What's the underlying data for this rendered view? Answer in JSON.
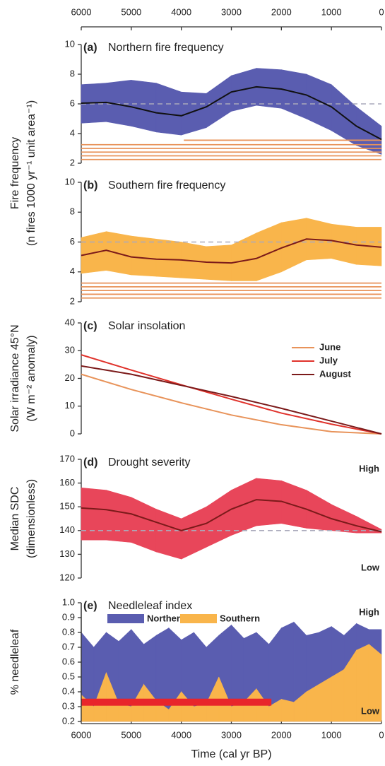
{
  "chart_data": [
    {
      "type": "band",
      "label": "(a)",
      "title": "Northern fire frequency",
      "ylabel": [
        "Fire frequency",
        "(n fires 1000 yr⁻¹ unit area⁻¹)"
      ],
      "xlim": [
        6000,
        0
      ],
      "xticks": [
        6000,
        5000,
        4000,
        3000,
        2000,
        1000,
        0
      ],
      "ylim": [
        2,
        10
      ],
      "yticks": [
        2,
        4,
        6,
        8,
        10
      ],
      "x": [
        6000,
        5500,
        5000,
        4500,
        4000,
        3500,
        3000,
        2500,
        2000,
        1500,
        1000,
        500,
        0
      ],
      "mean": [
        6.05,
        6.1,
        5.8,
        5.4,
        5.2,
        5.8,
        6.8,
        7.15,
        7.0,
        6.6,
        5.8,
        4.5,
        3.6
      ],
      "upper": [
        7.3,
        7.4,
        7.6,
        7.4,
        6.8,
        6.7,
        7.9,
        8.4,
        8.3,
        8.0,
        7.3,
        5.8,
        4.5
      ],
      "lower": [
        4.7,
        4.8,
        4.5,
        4.1,
        3.9,
        4.4,
        5.5,
        5.9,
        5.7,
        5.0,
        4.2,
        3.2,
        2.6
      ],
      "band_color": "#5a5db0",
      "line_color": "#111111",
      "ref_line": 6,
      "hline_color": "#e8935a",
      "hlines": [
        {
          "start": 3950,
          "end": 0,
          "y": 3.55
        },
        {
          "start": 6000,
          "end": 0,
          "y": 3.25
        },
        {
          "start": 6000,
          "end": 0,
          "y": 3.0
        },
        {
          "start": 6000,
          "end": 0,
          "y": 2.75
        },
        {
          "start": 6000,
          "end": 0,
          "y": 2.5
        },
        {
          "start": 6000,
          "end": 0,
          "y": 2.25
        }
      ]
    },
    {
      "type": "band",
      "label": "(b)",
      "title": "Southern fire frequency",
      "xlim": [
        6000,
        0
      ],
      "ylim": [
        2,
        10
      ],
      "yticks": [
        2,
        4,
        6,
        8,
        10
      ],
      "x": [
        6000,
        5500,
        5000,
        4500,
        4000,
        3500,
        3000,
        2500,
        2000,
        1500,
        1000,
        500,
        0
      ],
      "mean": [
        5.1,
        5.45,
        5.0,
        4.85,
        4.8,
        4.65,
        4.6,
        4.9,
        5.6,
        6.2,
        6.1,
        5.8,
        5.65
      ],
      "upper": [
        6.3,
        6.7,
        6.4,
        6.2,
        6.0,
        5.7,
        5.8,
        6.6,
        7.3,
        7.6,
        7.2,
        7.0,
        7.0
      ],
      "lower": [
        3.9,
        4.1,
        3.8,
        3.7,
        3.6,
        3.5,
        3.4,
        3.4,
        4.0,
        4.8,
        4.9,
        4.5,
        4.4
      ],
      "band_color": "#f9b54b",
      "line_color": "#7b1a1a",
      "ref_line": 6,
      "hline_color": "#e8935a",
      "hlines": [
        {
          "start": 6000,
          "end": 0,
          "y": 3.25
        },
        {
          "start": 6000,
          "end": 0,
          "y": 3.0
        },
        {
          "start": 6000,
          "end": 0,
          "y": 2.75
        },
        {
          "start": 6000,
          "end": 0,
          "y": 2.5
        },
        {
          "start": 6000,
          "end": 0,
          "y": 2.25
        }
      ]
    },
    {
      "type": "line",
      "label": "(c)",
      "title": "Solar insolation",
      "ylabel": [
        "Solar irradiance 45°N",
        "(W m⁻² anomaly)"
      ],
      "xlim": [
        6000,
        0
      ],
      "ylim": [
        0,
        40
      ],
      "yticks": [
        0,
        10,
        20,
        30,
        40
      ],
      "legend": "upper right",
      "x": [
        6000,
        5000,
        4000,
        3000,
        2000,
        1000,
        0
      ],
      "series": [
        {
          "name": "June",
          "color": "#e8935a",
          "values": [
            21.5,
            16,
            11.2,
            6.8,
            3.3,
            0.8,
            0
          ]
        },
        {
          "name": "July",
          "color": "#e0322b",
          "values": [
            28.5,
            23,
            17.7,
            12.5,
            7.5,
            3.5,
            0
          ]
        },
        {
          "name": "August",
          "color": "#7b1a1a",
          "values": [
            24.5,
            21.5,
            17.5,
            13.5,
            9.2,
            4.6,
            0
          ]
        }
      ]
    },
    {
      "type": "band",
      "label": "(d)",
      "title": "Drought severity",
      "ylabel": [
        "Median SDC",
        "(dimensionless)"
      ],
      "xlim": [
        6000,
        0
      ],
      "ylim": [
        120,
        170
      ],
      "yticks": [
        120,
        130,
        140,
        150,
        160,
        170
      ],
      "x": [
        6000,
        5500,
        5000,
        4500,
        4000,
        3500,
        3000,
        2500,
        2000,
        1500,
        1000,
        500,
        0
      ],
      "mean": [
        149.5,
        148.8,
        147,
        143.5,
        140,
        143,
        149,
        153,
        152.3,
        149,
        145,
        142,
        139.5
      ],
      "upper": [
        158,
        157,
        154,
        149,
        145,
        150,
        157,
        162,
        161,
        157,
        151,
        146,
        140.5
      ],
      "lower": [
        136,
        136,
        135,
        131,
        128,
        133,
        138,
        142,
        143,
        141,
        140,
        139,
        139
      ],
      "band_color": "#e8465a",
      "line_color": "#7b1a1a",
      "ref_line": 140,
      "annotations": [
        "High",
        "Low"
      ]
    },
    {
      "type": "area",
      "label": "(e)",
      "title": "Needleleaf index",
      "ylabel": [
        "% needleleaf"
      ],
      "xlabel": "Time (cal yr BP)",
      "xlim": [
        6000,
        0
      ],
      "xticks": [
        6000,
        5000,
        4000,
        3000,
        2000,
        1000,
        0
      ],
      "ylim": [
        0.2,
        1
      ],
      "yticks": [
        0.2,
        0.3,
        0.4,
        0.5,
        0.6,
        0.7,
        0.8,
        0.9,
        {
          "value": 1,
          "label": "1.0"
        }
      ],
      "legend": "upper left",
      "x": [
        6000,
        5750,
        5500,
        5250,
        5000,
        4750,
        4500,
        4250,
        4000,
        3750,
        3500,
        3250,
        3000,
        2750,
        2500,
        2250,
        2000,
        1750,
        1500,
        1250,
        1000,
        750,
        500,
        250,
        0
      ],
      "series": [
        {
          "name": "Northern",
          "color": "#5a5db0",
          "values": [
            0.8,
            0.7,
            0.8,
            0.74,
            0.82,
            0.72,
            0.78,
            0.83,
            0.75,
            0.8,
            0.7,
            0.78,
            0.85,
            0.76,
            0.8,
            0.72,
            0.83,
            0.87,
            0.78,
            0.8,
            0.84,
            0.78,
            0.86,
            0.82,
            0.82
          ]
        },
        {
          "name": "Southern",
          "color": "#f9b54b",
          "values": [
            0.38,
            0.3,
            0.53,
            0.32,
            0.3,
            0.45,
            0.34,
            0.28,
            0.4,
            0.3,
            0.32,
            0.5,
            0.3,
            0.33,
            0.42,
            0.3,
            0.35,
            0.33,
            0.4,
            0.45,
            0.5,
            0.55,
            0.68,
            0.72,
            0.65
          ]
        }
      ],
      "bar": {
        "start": 6000,
        "end": 2200,
        "y": 0.33,
        "color": "#e8252b"
      },
      "annotations": [
        "High",
        "Low"
      ]
    }
  ]
}
